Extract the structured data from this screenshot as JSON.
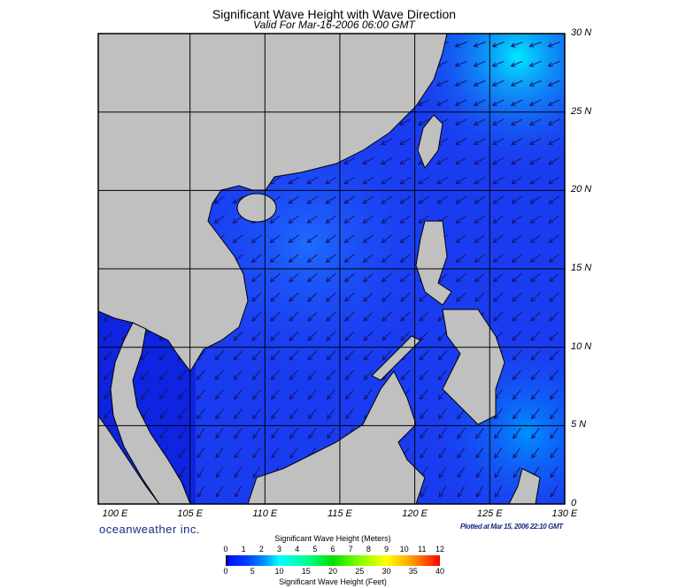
{
  "title": "Significant Wave Height with Wave Direction",
  "subtitle": "Valid For Mar-16-2006 06:00 GMT",
  "map": {
    "lon_range": [
      99,
      130
    ],
    "lat_range": [
      0,
      30
    ],
    "lon_labels": [
      "100 E",
      "105 E",
      "110 E",
      "115 E",
      "120 E",
      "125 E",
      "130 E"
    ],
    "lat_labels": [
      "30 N",
      "25 N",
      "20 N",
      "15 N",
      "10 N",
      "5 N",
      "0"
    ],
    "grid": true,
    "land_color": "#c0c0c0",
    "ocean_color": "#1a3cf0",
    "arrow_color": "#14146e",
    "arrow_direction": "toward southwest"
  },
  "brand": "oceanweather inc.",
  "plotted": "Plotted at Mar 15, 2006 22:10 GMT",
  "legend": {
    "title_meters": "Significant Wave Height (Meters)",
    "title_feet": "Significant Wave Height (Feet)",
    "meters": [
      "0",
      "1",
      "2",
      "3",
      "4",
      "5",
      "6",
      "7",
      "8",
      "9",
      "10",
      "11",
      "12"
    ],
    "feet": [
      "0",
      "5",
      "10",
      "15",
      "20",
      "25",
      "30",
      "35",
      "40"
    ]
  }
}
